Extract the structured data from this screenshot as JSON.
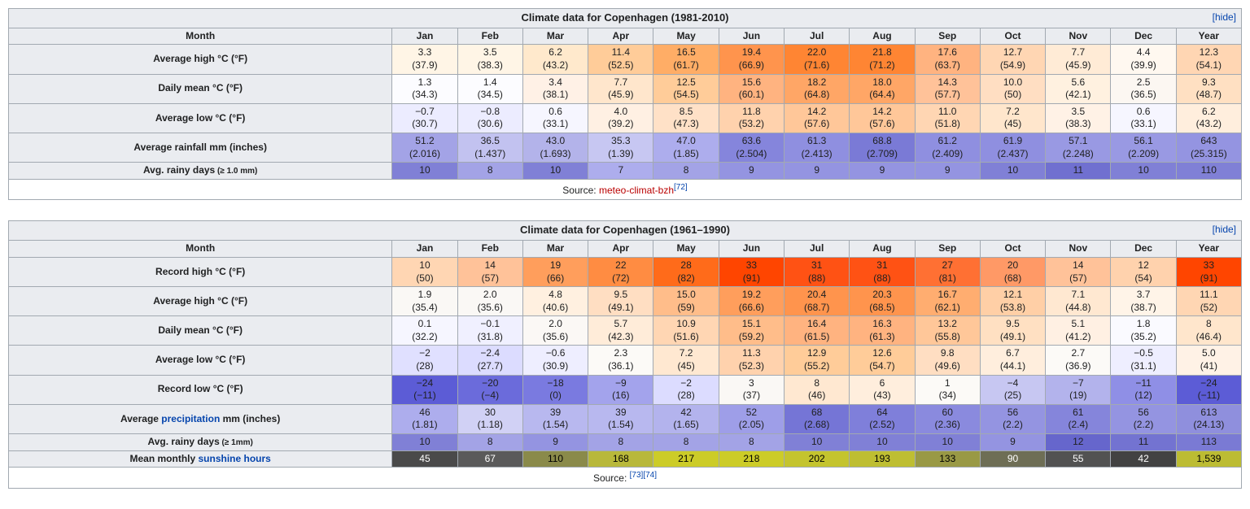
{
  "months": [
    "Jan",
    "Feb",
    "Mar",
    "Apr",
    "May",
    "Jun",
    "Jul",
    "Aug",
    "Sep",
    "Oct",
    "Nov",
    "Dec",
    "Year"
  ],
  "hide": "[hide]",
  "month_label": "Month",
  "t1": {
    "title": "Climate data for Copenhagen (1981-2010)",
    "source_prefix": "Source: ",
    "source_link": "meteo-climat-bzh",
    "source_ref": "[72]",
    "rows": [
      {
        "label": "Average high °C (°F)",
        "key": "ah",
        "style": "temp",
        "c": [
          "3.3",
          "3.5",
          "6.2",
          "11.4",
          "16.5",
          "19.4",
          "22.0",
          "21.8",
          "17.6",
          "12.7",
          "7.7",
          "4.4",
          "12.3"
        ],
        "f": [
          "(37.9)",
          "(38.3)",
          "(43.2)",
          "(52.5)",
          "(61.7)",
          "(66.9)",
          "(71.6)",
          "(71.2)",
          "(63.7)",
          "(54.9)",
          "(45.9)",
          "(39.9)",
          "(54.1)"
        ],
        "bg": [
          "#fff5e6",
          "#fff5e6",
          "#ffe9cc",
          "#ffcc99",
          "#ffad66",
          "#ff944d",
          "#ff8533",
          "#ff8533",
          "#ffb380",
          "#ffd6b3",
          "#ffebd6",
          "#fff8f0",
          "#ffd6b3"
        ]
      },
      {
        "label": "Daily mean °C (°F)",
        "key": "dm",
        "style": "temp",
        "c": [
          "1.3",
          "1.4",
          "3.4",
          "7.7",
          "12.5",
          "15.6",
          "18.2",
          "18.0",
          "14.3",
          "10.0",
          "5.6",
          "2.5",
          "9.3"
        ],
        "f": [
          "(34.3)",
          "(34.5)",
          "(38.1)",
          "(45.9)",
          "(54.5)",
          "(60.1)",
          "(64.8)",
          "(64.4)",
          "(57.7)",
          "(50)",
          "(42.1)",
          "(36.5)",
          "(48.7)"
        ],
        "bg": [
          "#fcfcff",
          "#fcfcff",
          "#fff1e6",
          "#ffe6cc",
          "#ffcc99",
          "#ffb380",
          "#ffa666",
          "#ffa666",
          "#ffc299",
          "#ffdec2",
          "#fff1e0",
          "#fcf7f2",
          "#ffe0c2"
        ]
      },
      {
        "label": "Average low °C (°F)",
        "key": "al",
        "style": "temp",
        "c": [
          "−0.7",
          "−0.8",
          "0.6",
          "4.0",
          "8.5",
          "11.8",
          "14.2",
          "14.2",
          "11.0",
          "7.2",
          "3.5",
          "0.6",
          "6.2"
        ],
        "f": [
          "(30.7)",
          "(30.6)",
          "(33.1)",
          "(39.2)",
          "(47.3)",
          "(53.2)",
          "(57.6)",
          "(57.6)",
          "(51.8)",
          "(45)",
          "(38.3)",
          "(33.1)",
          "(43.2)"
        ],
        "bg": [
          "#ececff",
          "#ececff",
          "#f6f6ff",
          "#fff0e3",
          "#ffe1c7",
          "#ffd2ad",
          "#ffc799",
          "#ffc799",
          "#ffd6b3",
          "#ffe6cc",
          "#fff2e6",
          "#f6f6ff",
          "#ffeedd"
        ]
      },
      {
        "label": "Average rainfall mm (inches)",
        "key": "rf",
        "style": "rain",
        "c": [
          "51.2",
          "36.5",
          "43.0",
          "35.3",
          "47.0",
          "63.6",
          "61.3",
          "68.8",
          "61.2",
          "61.9",
          "57.1",
          "56.1",
          "643"
        ],
        "f": [
          "(2.016)",
          "(1.437)",
          "(1.693)",
          "(1.39)",
          "(1.85)",
          "(2.504)",
          "(2.413)",
          "(2.709)",
          "(2.409)",
          "(2.437)",
          "(2.248)",
          "(2.209)",
          "(25.315)"
        ],
        "bg": [
          "#a3a3e6",
          "#c2c2f0",
          "#b3b3ea",
          "#c7c7f2",
          "#adaded",
          "#8585dc",
          "#8f8fe0",
          "#7a7ad6",
          "#8f8fe0",
          "#8f8fe0",
          "#9999e3",
          "#9999e3",
          "#9494e1"
        ]
      },
      {
        "label": "Avg. rainy days",
        "suffix": " (≥ 1.0 mm)",
        "key": "rd",
        "style": "rain_single",
        "c": [
          "10",
          "8",
          "10",
          "7",
          "8",
          "9",
          "9",
          "9",
          "9",
          "10",
          "11",
          "10",
          "110"
        ],
        "bg": [
          "#8080d6",
          "#a3a3e6",
          "#8080d6",
          "#adaded",
          "#a3a3e6",
          "#9494e1",
          "#9494e1",
          "#9494e1",
          "#9494e1",
          "#8080d6",
          "#7070d0",
          "#8080d6",
          "#8080d6"
        ]
      }
    ]
  },
  "t2": {
    "title": "Climate data for Copenhagen (1961–1990)",
    "source_prefix": "Source: ",
    "source_refs": "[73][74]",
    "rows": [
      {
        "label": "Record high °C (°F)",
        "key": "rh",
        "style": "temp",
        "c": [
          "10",
          "14",
          "19",
          "22",
          "28",
          "33",
          "31",
          "31",
          "27",
          "20",
          "14",
          "12",
          "33"
        ],
        "f": [
          "(50)",
          "(57)",
          "(66)",
          "(72)",
          "(82)",
          "(91)",
          "(88)",
          "(88)",
          "(81)",
          "(68)",
          "(57)",
          "(54)",
          "(91)"
        ],
        "bg": [
          "#ffd6b3",
          "#ffc299",
          "#ff9e5c",
          "#ff8c42",
          "#ff6b1a",
          "#ff4500",
          "#ff5214",
          "#ff5214",
          "#ff7033",
          "#ff9966",
          "#ffc299",
          "#ffd2ad",
          "#ff4500"
        ]
      },
      {
        "label": "Average high °C (°F)",
        "key": "ah",
        "style": "temp",
        "c": [
          "1.9",
          "2.0",
          "4.8",
          "9.5",
          "15.0",
          "19.2",
          "20.4",
          "20.3",
          "16.7",
          "12.1",
          "7.1",
          "3.7",
          "11.1"
        ],
        "f": [
          "(35.4)",
          "(35.6)",
          "(40.6)",
          "(49.1)",
          "(59)",
          "(66.6)",
          "(68.7)",
          "(68.5)",
          "(62.1)",
          "(53.8)",
          "(44.8)",
          "(38.7)",
          "(52)"
        ],
        "bg": [
          "#faf8f5",
          "#faf8f5",
          "#fff0e0",
          "#ffdec2",
          "#ffbd8a",
          "#ff9e5c",
          "#ff944d",
          "#ff944d",
          "#ffad70",
          "#ffcfa6",
          "#ffe8d1",
          "#fff4e8",
          "#ffd6b3"
        ]
      },
      {
        "label": "Daily mean °C (°F)",
        "key": "dm",
        "style": "temp",
        "c": [
          "0.1",
          "−0.1",
          "2.0",
          "5.7",
          "10.9",
          "15.1",
          "16.4",
          "16.3",
          "13.2",
          "9.5",
          "5.1",
          "1.8",
          "8"
        ],
        "f": [
          "(32.2)",
          "(31.8)",
          "(35.6)",
          "(42.3)",
          "(51.6)",
          "(59.2)",
          "(61.5)",
          "(61.3)",
          "(55.8)",
          "(49.1)",
          "(41.2)",
          "(35.2)",
          "(46.4)"
        ],
        "bg": [
          "#f6f6ff",
          "#f0f0ff",
          "#fbf8f5",
          "#ffecd9",
          "#ffd6b3",
          "#ffbd8a",
          "#ffb380",
          "#ffb380",
          "#ffc799",
          "#ffe0c2",
          "#fff0e3",
          "#fafaff",
          "#ffe6cc"
        ]
      },
      {
        "label": "Average low °C (°F)",
        "key": "al",
        "style": "temp",
        "c": [
          "−2",
          "−2.4",
          "−0.6",
          "2.3",
          "7.2",
          "11.3",
          "12.9",
          "12.6",
          "9.8",
          "6.7",
          "2.7",
          "−0.5",
          "5.0"
        ],
        "f": [
          "(28)",
          "(27.7)",
          "(30.9)",
          "(36.1)",
          "(45)",
          "(52.3)",
          "(55.2)",
          "(54.7)",
          "(49.6)",
          "(44.1)",
          "(36.9)",
          "(31.1)",
          "(41)"
        ],
        "bg": [
          "#e0e0ff",
          "#dcdcff",
          "#eeeeff",
          "#fcfaf7",
          "#ffe8d1",
          "#ffd2ad",
          "#ffcc99",
          "#ffcc99",
          "#ffdec2",
          "#ffeedd",
          "#fcfaf7",
          "#eeeeff",
          "#fff2e6"
        ]
      },
      {
        "label": "Record low °C (°F)",
        "key": "rl",
        "style": "temp",
        "c": [
          "−24",
          "−20",
          "−18",
          "−9",
          "−2",
          "3",
          "8",
          "6",
          "1",
          "−4",
          "−7",
          "−11",
          "−24"
        ],
        "f": [
          "(−11)",
          "(−4)",
          "(0)",
          "(16)",
          "(28)",
          "(37)",
          "(46)",
          "(43)",
          "(34)",
          "(25)",
          "(19)",
          "(12)",
          "(−11)"
        ],
        "bg": [
          "#5c5cd6",
          "#6b6bdb",
          "#7a7ae0",
          "#a3a3ec",
          "#dcdcff",
          "#faf8f5",
          "#ffe8d1",
          "#ffeedd",
          "#fcfaf7",
          "#c7c7f2",
          "#b3b3ec",
          "#8f8fe6",
          "#5c5cd6"
        ]
      },
      {
        "label_html": "Average <a href='#' data-name='precipitation-link' data-interactable='true'>precipitation</a> mm (inches)",
        "key": "pr",
        "style": "rain",
        "c": [
          "46",
          "30",
          "39",
          "39",
          "42",
          "52",
          "68",
          "64",
          "60",
          "56",
          "61",
          "56",
          "613"
        ],
        "f": [
          "(1.81)",
          "(1.18)",
          "(1.54)",
          "(1.54)",
          "(1.65)",
          "(2.05)",
          "(2.68)",
          "(2.52)",
          "(2.36)",
          "(2.2)",
          "(2.4)",
          "(2.2)",
          "(24.13)"
        ],
        "bg": [
          "#adaded",
          "#d1d1f5",
          "#b8b8ef",
          "#b8b8ef",
          "#b3b3ed",
          "#9e9ee8",
          "#7575d6",
          "#7f7fda",
          "#8a8ade",
          "#9494e1",
          "#8585db",
          "#9494e1",
          "#8f8fdd"
        ]
      },
      {
        "label": "Avg. rainy days",
        "suffix": " (≥ 1mm)",
        "key": "rd",
        "style": "rain_single",
        "c": [
          "10",
          "8",
          "9",
          "8",
          "8",
          "8",
          "10",
          "10",
          "10",
          "9",
          "12",
          "11",
          "113"
        ],
        "bg": [
          "#8080d6",
          "#a3a3e6",
          "#9494e1",
          "#a3a3e6",
          "#a3a3e6",
          "#a3a3e6",
          "#8080d6",
          "#8080d6",
          "#8080d6",
          "#9494e1",
          "#6666cc",
          "#7373d1",
          "#7a7ad4"
        ]
      },
      {
        "label_html": "Mean monthly <a href='#' data-name='sunshine-link' data-interactable='true'>sunshine hours</a>",
        "key": "sh",
        "style": "sun_single",
        "c": [
          "45",
          "67",
          "110",
          "168",
          "217",
          "218",
          "202",
          "193",
          "133",
          "90",
          "55",
          "42",
          "1,539"
        ],
        "bg": [
          "#4a4a4a",
          "#5a5a5a",
          "#8a8a4a",
          "#b8b83a",
          "#cccc28",
          "#cccc28",
          "#c4c42e",
          "#bebe32",
          "#999945",
          "#6e6e55",
          "#525252",
          "#424242",
          "#bcbc33"
        ],
        "fg": [
          "#fff",
          "#fff",
          "#000",
          "#000",
          "#000",
          "#000",
          "#000",
          "#000",
          "#000",
          "#fff",
          "#fff",
          "#fff",
          "#000"
        ]
      }
    ]
  }
}
